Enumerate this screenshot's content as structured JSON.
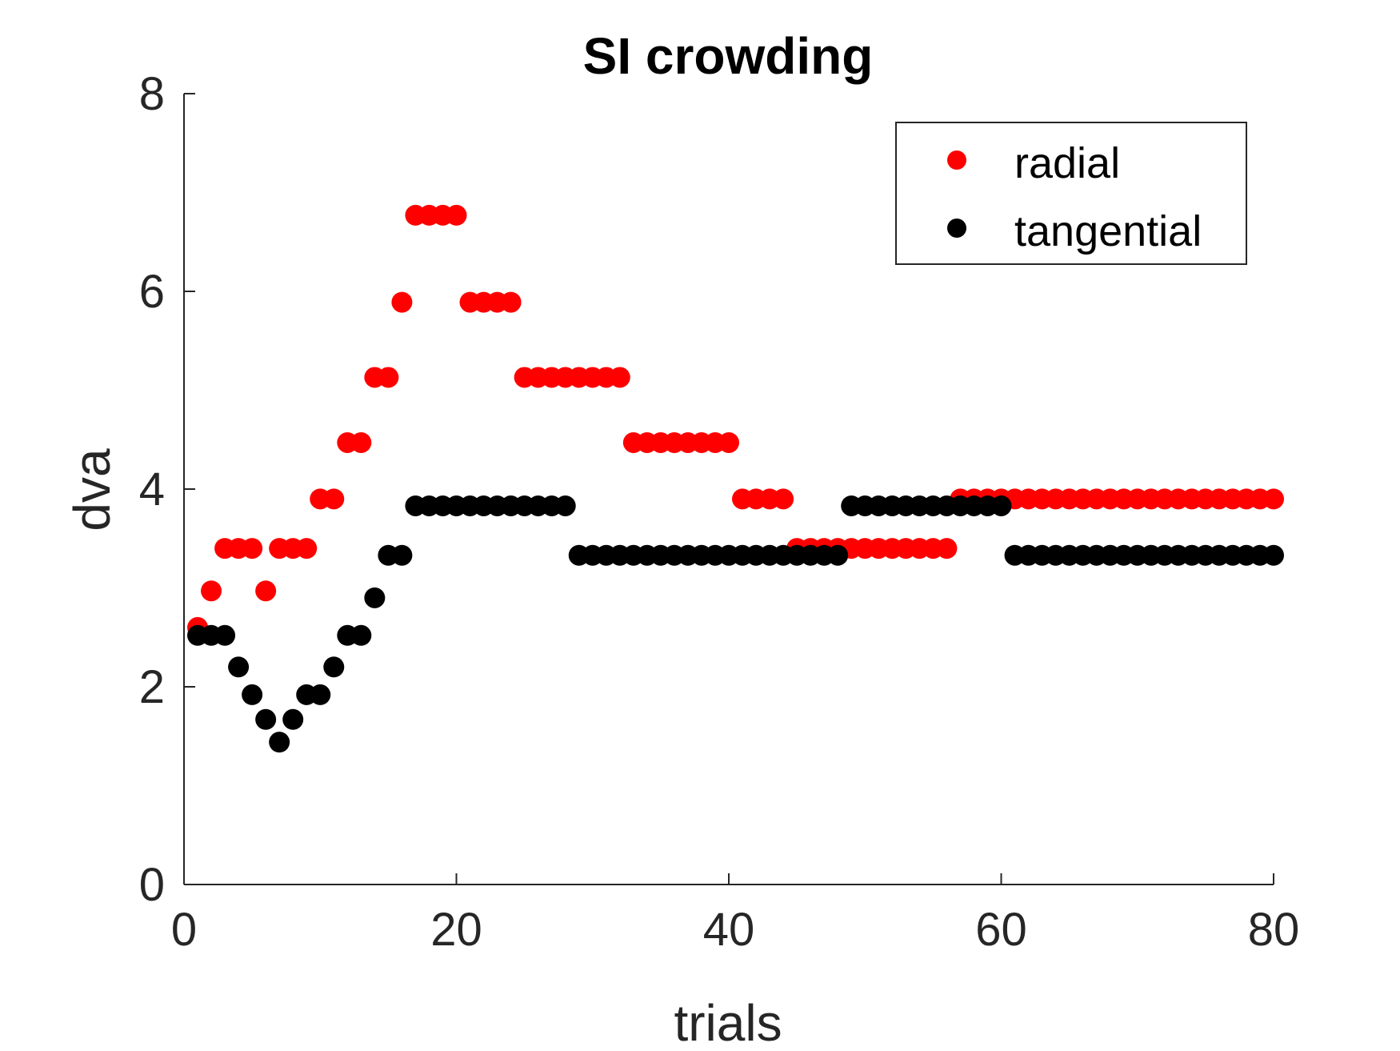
{
  "chart_data": {
    "type": "scatter",
    "title": "SI crowding",
    "xlabel": "trials",
    "ylabel": "dva",
    "xlim": [
      0,
      80
    ],
    "ylim": [
      0,
      8
    ],
    "xticks": [
      0,
      20,
      40,
      60,
      80
    ],
    "yticks": [
      0,
      2,
      4,
      6,
      8
    ],
    "grid": false,
    "legend_position": "top-right",
    "series": [
      {
        "name": "radial",
        "color": "#ff0000",
        "x": [
          1,
          2,
          3,
          4,
          5,
          6,
          7,
          8,
          9,
          10,
          11,
          12,
          13,
          14,
          15,
          16,
          17,
          18,
          19,
          20,
          21,
          22,
          23,
          24,
          25,
          26,
          27,
          28,
          29,
          30,
          31,
          32,
          33,
          34,
          35,
          36,
          37,
          38,
          39,
          40,
          41,
          42,
          43,
          44,
          45,
          46,
          47,
          48,
          49,
          50,
          51,
          52,
          53,
          54,
          55,
          56,
          57,
          58,
          59,
          60,
          61,
          62,
          63,
          64,
          65,
          66,
          67,
          68,
          69,
          70,
          71,
          72,
          73,
          74,
          75,
          76,
          77,
          78,
          79,
          80
        ],
        "y": [
          2.6,
          2.97,
          3.4,
          3.4,
          3.4,
          2.97,
          3.4,
          3.4,
          3.4,
          3.9,
          3.9,
          4.47,
          4.47,
          5.13,
          5.13,
          5.89,
          6.77,
          6.77,
          6.77,
          6.77,
          5.89,
          5.89,
          5.89,
          5.89,
          5.13,
          5.13,
          5.13,
          5.13,
          5.13,
          5.13,
          5.13,
          5.13,
          4.47,
          4.47,
          4.47,
          4.47,
          4.47,
          4.47,
          4.47,
          4.47,
          3.9,
          3.9,
          3.9,
          3.9,
          3.4,
          3.4,
          3.4,
          3.4,
          3.4,
          3.4,
          3.4,
          3.4,
          3.4,
          3.4,
          3.4,
          3.4,
          3.9,
          3.9,
          3.9,
          3.9,
          3.9,
          3.9,
          3.9,
          3.9,
          3.9,
          3.9,
          3.9,
          3.9,
          3.9,
          3.9,
          3.9,
          3.9,
          3.9,
          3.9,
          3.9,
          3.9,
          3.9,
          3.9,
          3.9,
          3.9
        ]
      },
      {
        "name": "tangential",
        "color": "#000000",
        "x": [
          1,
          2,
          3,
          4,
          5,
          6,
          7,
          8,
          9,
          10,
          11,
          12,
          13,
          14,
          15,
          16,
          17,
          18,
          19,
          20,
          21,
          22,
          23,
          24,
          25,
          26,
          27,
          28,
          29,
          30,
          31,
          32,
          33,
          34,
          35,
          36,
          37,
          38,
          39,
          40,
          41,
          42,
          43,
          44,
          45,
          46,
          47,
          48,
          49,
          50,
          51,
          52,
          53,
          54,
          55,
          56,
          57,
          58,
          59,
          60,
          61,
          62,
          63,
          64,
          65,
          66,
          67,
          68,
          69,
          70,
          71,
          72,
          73,
          74,
          75,
          76,
          77,
          78,
          79,
          80
        ],
        "y": [
          2.52,
          2.52,
          2.52,
          2.2,
          1.92,
          1.67,
          1.44,
          1.67,
          1.92,
          1.92,
          2.2,
          2.52,
          2.52,
          2.9,
          3.33,
          3.33,
          3.83,
          3.83,
          3.83,
          3.83,
          3.83,
          3.83,
          3.83,
          3.83,
          3.83,
          3.83,
          3.83,
          3.83,
          3.33,
          3.33,
          3.33,
          3.33,
          3.33,
          3.33,
          3.33,
          3.33,
          3.33,
          3.33,
          3.33,
          3.33,
          3.33,
          3.33,
          3.33,
          3.33,
          3.33,
          3.33,
          3.33,
          3.33,
          3.83,
          3.83,
          3.83,
          3.83,
          3.83,
          3.83,
          3.83,
          3.83,
          3.83,
          3.83,
          3.83,
          3.83,
          3.33,
          3.33,
          3.33,
          3.33,
          3.33,
          3.33,
          3.33,
          3.33,
          3.33,
          3.33,
          3.33,
          3.33,
          3.33,
          3.33,
          3.33,
          3.33,
          3.33,
          3.33,
          3.33,
          3.33
        ]
      }
    ]
  }
}
